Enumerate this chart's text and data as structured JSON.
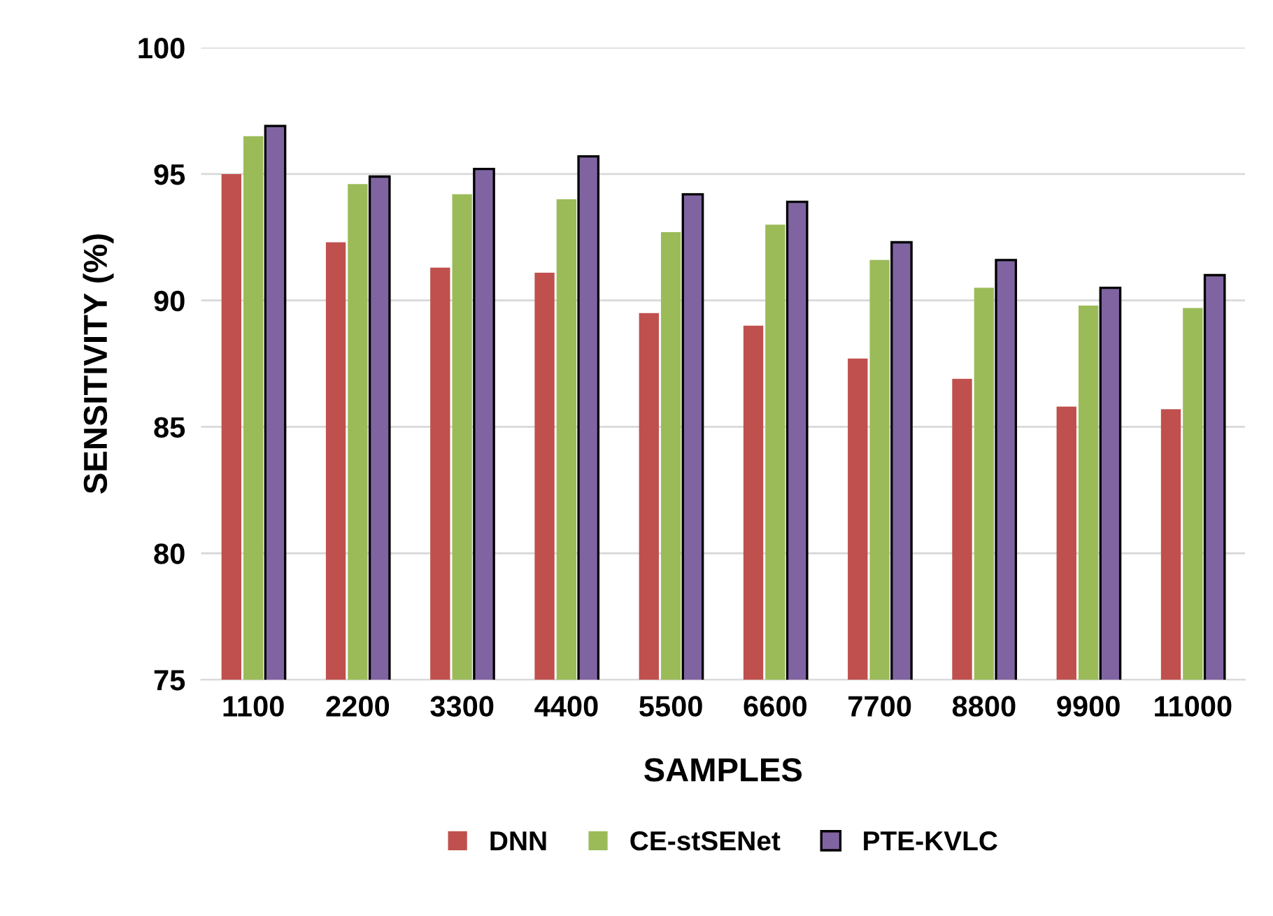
{
  "chart_data": {
    "type": "bar",
    "xlabel": "SAMPLES",
    "ylabel": "SENSITIVITY (%)",
    "categories": [
      "1100",
      "2200",
      "3300",
      "4400",
      "5500",
      "6600",
      "7700",
      "8800",
      "9900",
      "11000"
    ],
    "series": [
      {
        "name": "DNN",
        "color": "#c0504d",
        "values": [
          95.0,
          92.3,
          91.3,
          91.1,
          89.5,
          89.0,
          87.7,
          86.9,
          85.8,
          85.7
        ]
      },
      {
        "name": "CE-stSENet",
        "color": "#9bbb59",
        "values": [
          96.5,
          94.6,
          94.2,
          94.0,
          92.7,
          93.0,
          91.6,
          90.5,
          89.8,
          89.7
        ]
      },
      {
        "name": "PTE-KVLC",
        "color": "#8064a2",
        "values": [
          96.9,
          94.9,
          95.2,
          95.7,
          94.2,
          93.9,
          92.3,
          91.6,
          90.5,
          91.0
        ]
      }
    ],
    "ylim": [
      75,
      100
    ],
    "yticks": [
      75,
      80,
      85,
      90,
      95,
      100
    ],
    "grid": "y",
    "legend": "bottom"
  }
}
